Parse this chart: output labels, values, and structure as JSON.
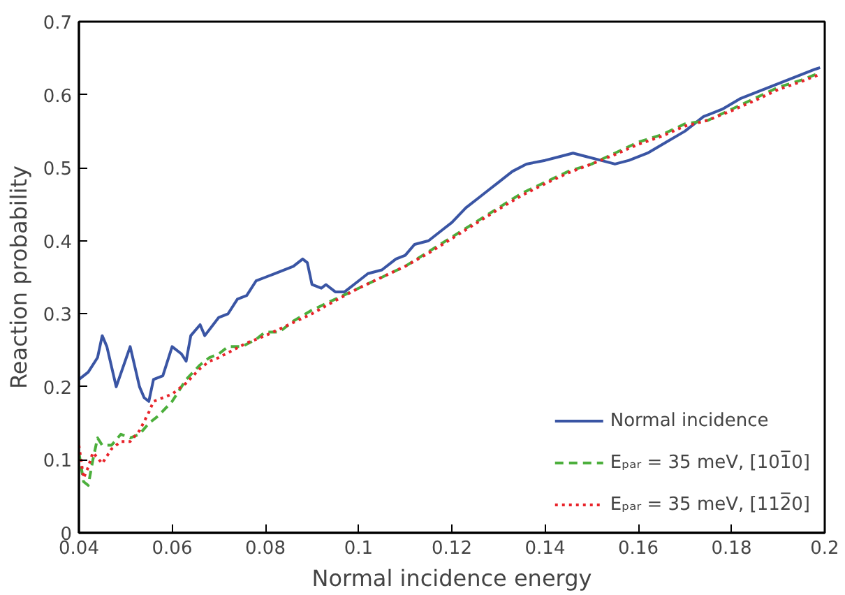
{
  "chart_data": {
    "type": "line",
    "xlabel": "Normal incidence energy",
    "ylabel": "Reaction probability",
    "xlim": [
      0.04,
      0.2
    ],
    "ylim": [
      0,
      0.7
    ],
    "xticks": [
      0.04,
      0.06,
      0.08,
      0.1,
      0.12,
      0.14,
      0.16,
      0.18,
      0.2
    ],
    "yticks": [
      0,
      0.1,
      0.2,
      0.3,
      0.4,
      0.5,
      0.6,
      0.7
    ],
    "grid": false,
    "legend": "bottom right",
    "marker": "none",
    "series": [
      {
        "name": "Normal incidence",
        "color": "#3a55a4",
        "line_style": "solid",
        "x": [
          0.04,
          0.042,
          0.044,
          0.045,
          0.046,
          0.048,
          0.051,
          0.053,
          0.054,
          0.055,
          0.056,
          0.058,
          0.06,
          0.062,
          0.063,
          0.064,
          0.066,
          0.067,
          0.07,
          0.072,
          0.074,
          0.076,
          0.078,
          0.08,
          0.082,
          0.084,
          0.086,
          0.088,
          0.089,
          0.09,
          0.092,
          0.093,
          0.095,
          0.097,
          0.1,
          0.102,
          0.105,
          0.108,
          0.11,
          0.112,
          0.115,
          0.118,
          0.12,
          0.123,
          0.126,
          0.128,
          0.13,
          0.133,
          0.136,
          0.14,
          0.143,
          0.146,
          0.149,
          0.152,
          0.155,
          0.158,
          0.162,
          0.166,
          0.17,
          0.174,
          0.178,
          0.182,
          0.186,
          0.19,
          0.194,
          0.198,
          0.199
        ],
        "values": [
          0.21,
          0.22,
          0.24,
          0.27,
          0.255,
          0.2,
          0.255,
          0.2,
          0.185,
          0.18,
          0.21,
          0.215,
          0.255,
          0.245,
          0.235,
          0.27,
          0.285,
          0.27,
          0.295,
          0.3,
          0.32,
          0.325,
          0.345,
          0.35,
          0.355,
          0.36,
          0.365,
          0.375,
          0.37,
          0.34,
          0.335,
          0.34,
          0.33,
          0.33,
          0.345,
          0.355,
          0.36,
          0.375,
          0.38,
          0.395,
          0.4,
          0.415,
          0.425,
          0.445,
          0.46,
          0.47,
          0.48,
          0.495,
          0.505,
          0.51,
          0.515,
          0.52,
          0.515,
          0.51,
          0.505,
          0.51,
          0.52,
          0.535,
          0.55,
          0.57,
          0.58,
          0.595,
          0.605,
          0.615,
          0.625,
          0.635,
          0.637
        ]
      },
      {
        "name": "Eₚₐᵣ = 35 meV, [101̅0]",
        "color": "#4caf3c",
        "line_style": "dashed",
        "x": [
          0.04,
          0.041,
          0.042,
          0.043,
          0.044,
          0.045,
          0.047,
          0.049,
          0.051,
          0.053,
          0.055,
          0.057,
          0.06,
          0.063,
          0.066,
          0.068,
          0.07,
          0.072,
          0.075,
          0.078,
          0.08,
          0.083,
          0.086,
          0.09,
          0.095,
          0.1,
          0.105,
          0.11,
          0.115,
          0.12,
          0.125,
          0.13,
          0.135,
          0.14,
          0.145,
          0.15,
          0.155,
          0.16,
          0.165,
          0.17,
          0.175,
          0.18,
          0.185,
          0.19,
          0.195,
          0.199
        ],
        "values": [
          0.11,
          0.07,
          0.065,
          0.1,
          0.13,
          0.12,
          0.12,
          0.135,
          0.13,
          0.135,
          0.15,
          0.16,
          0.18,
          0.21,
          0.23,
          0.24,
          0.245,
          0.255,
          0.255,
          0.265,
          0.275,
          0.275,
          0.29,
          0.305,
          0.32,
          0.335,
          0.35,
          0.365,
          0.385,
          0.405,
          0.425,
          0.445,
          0.465,
          0.48,
          0.495,
          0.505,
          0.52,
          0.535,
          0.545,
          0.56,
          0.565,
          0.58,
          0.595,
          0.61,
          0.62,
          0.63
        ]
      },
      {
        "name": "Eₚₐᵣ = 35 meV, [112̅0]",
        "color": "#e8232a",
        "line_style": "dotted",
        "x": [
          0.04,
          0.041,
          0.042,
          0.043,
          0.045,
          0.047,
          0.049,
          0.051,
          0.053,
          0.055,
          0.056,
          0.058,
          0.06,
          0.063,
          0.066,
          0.068,
          0.07,
          0.073,
          0.076,
          0.08,
          0.085,
          0.09,
          0.095,
          0.1,
          0.105,
          0.11,
          0.115,
          0.12,
          0.125,
          0.13,
          0.135,
          0.14,
          0.145,
          0.15,
          0.155,
          0.16,
          0.165,
          0.17,
          0.175,
          0.18,
          0.185,
          0.19,
          0.195,
          0.199
        ],
        "values": [
          0.12,
          0.075,
          0.09,
          0.11,
          0.095,
          0.115,
          0.125,
          0.125,
          0.14,
          0.165,
          0.18,
          0.185,
          0.19,
          0.205,
          0.225,
          0.235,
          0.24,
          0.25,
          0.26,
          0.27,
          0.285,
          0.3,
          0.318,
          0.335,
          0.35,
          0.365,
          0.383,
          0.403,
          0.423,
          0.443,
          0.462,
          0.478,
          0.493,
          0.505,
          0.518,
          0.532,
          0.543,
          0.557,
          0.565,
          0.578,
          0.592,
          0.607,
          0.618,
          0.628
        ]
      }
    ]
  }
}
